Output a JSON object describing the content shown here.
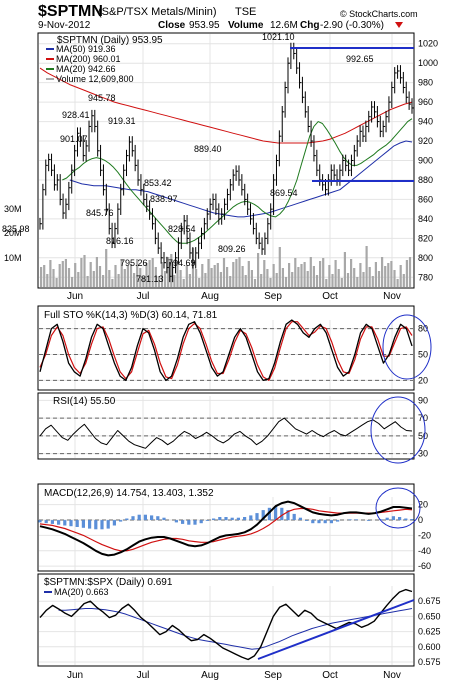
{
  "header": {
    "symbol": "$SPTMN",
    "name": "(S&P/TSX Metals/Minin)",
    "exchange": "TSE",
    "date": "9-Nov-2012",
    "close_label": "Close",
    "close": "953.95",
    "volume_label": "Volume",
    "volume": "12.6M",
    "chg_label": "Chg",
    "chg": "-2.90 (-0.30%)",
    "watermark": "© StockCharts.com"
  },
  "colors": {
    "price": "#000000",
    "ma50": "#1f2fa8",
    "ma200": "#d01010",
    "ma20": "#1f7a1f",
    "volume": "#a8a8a8",
    "annotation": "#1f2fc8",
    "histogram": "#5b8fd8"
  },
  "months": [
    "Jun",
    "Jul",
    "Aug",
    "Sep",
    "Oct",
    "Nov"
  ],
  "chart_data": [
    {
      "type": "line",
      "panel": "price",
      "title": "$SPTMN (Daily) 953.95",
      "legend": [
        {
          "label": "MA(50) 919.36",
          "color": "#1f2fa8"
        },
        {
          "label": "MA(200) 960.01",
          "color": "#d01010"
        },
        {
          "label": "MA(20) 942.66",
          "color": "#1f7a1f"
        },
        {
          "label": "Volume 12,609,800",
          "color": "#a8a8a8"
        }
      ],
      "ylim": [
        770,
        1030
      ],
      "yticks": [
        780,
        800,
        820,
        840,
        860,
        880,
        900,
        920,
        940,
        960,
        980,
        1000,
        1020
      ],
      "volume_labels": [
        "30M",
        "20M",
        "10M"
      ],
      "price_labels": [
        "825.98",
        "901.07",
        "928.41",
        "945.78",
        "845.76",
        "919.31",
        "816.16",
        "853.42",
        "795.26",
        "781.13",
        "794.69",
        "838.97",
        "828.54",
        "889.40",
        "809.26",
        "1021.10",
        "869.54",
        "992.65"
      ],
      "close": [
        835,
        870,
        895,
        901,
        890,
        875,
        880,
        860,
        846,
        855,
        872,
        890,
        910,
        928,
        920,
        905,
        915,
        935,
        946,
        935,
        910,
        890,
        870,
        850,
        830,
        816,
        830,
        850,
        870,
        890,
        905,
        919,
        910,
        895,
        880,
        870,
        860,
        853,
        845,
        835,
        820,
        810,
        800,
        795,
        790,
        781,
        790,
        800,
        815,
        830,
        838,
        820,
        805,
        795,
        805,
        815,
        825,
        835,
        845,
        855,
        860,
        850,
        840,
        845,
        855,
        865,
        875,
        885,
        889,
        880,
        870,
        860,
        850,
        840,
        830,
        820,
        815,
        809,
        820,
        835,
        850,
        880,
        900,
        925,
        950,
        975,
        1000,
        1015,
        1010,
        995,
        980,
        965,
        950,
        935,
        920,
        905,
        890,
        880,
        875,
        870,
        880,
        890,
        885,
        880,
        890,
        900,
        895,
        890,
        900,
        910,
        920,
        930,
        925,
        935,
        945,
        955,
        950,
        940,
        930,
        935,
        945,
        960,
        975,
        990,
        992,
        985,
        975,
        965,
        958,
        954
      ],
      "ma50": [
        880,
        878,
        876,
        875,
        874,
        874,
        874,
        873,
        872,
        871,
        870,
        870,
        869,
        868,
        866,
        864,
        862,
        860,
        858,
        856,
        854,
        852,
        850,
        848,
        846,
        845,
        844,
        843,
        842,
        842,
        843,
        844,
        845,
        846,
        848,
        850,
        852,
        854,
        856,
        858,
        860,
        862,
        864,
        866,
        868,
        870,
        875,
        880,
        885,
        890,
        895,
        900,
        905,
        910,
        915,
        918,
        920,
        919
      ],
      "ma200": [
        995,
        990,
        986,
        982,
        978,
        975,
        972,
        969,
        966,
        963,
        960,
        958,
        956,
        954,
        952,
        950,
        948,
        946,
        944,
        942,
        940,
        938,
        936,
        934,
        932,
        930,
        928,
        926,
        924,
        922,
        920,
        919,
        918,
        918,
        918,
        918,
        918,
        919,
        920,
        922,
        925,
        928,
        932,
        936,
        940,
        944,
        948,
        952,
        955,
        958,
        960
      ],
      "ma20": [
        880,
        882,
        886,
        890,
        893,
        897,
        900,
        902,
        903,
        902,
        900,
        897,
        893,
        888,
        882,
        876,
        870,
        865,
        860,
        855,
        850,
        845,
        840,
        835,
        830,
        825,
        820,
        816,
        815,
        815,
        816,
        818,
        821,
        824,
        828,
        832,
        836,
        840,
        844,
        848,
        852,
        855,
        857,
        858,
        857,
        855,
        852,
        848,
        845,
        843,
        842,
        845,
        850,
        858,
        868,
        880,
        895,
        910,
        925,
        935,
        940,
        938,
        932,
        925,
        918,
        910,
        903,
        898,
        895,
        895,
        897,
        900,
        903,
        906,
        910,
        913,
        916,
        920,
        925,
        930,
        935,
        940,
        943
      ]
    },
    {
      "type": "line",
      "panel": "stochastic",
      "title": "Full STO %K(14,3) %D(3) 60.14, 71.81",
      "ylim": [
        10,
        90
      ],
      "yticks": [
        20,
        50,
        80
      ],
      "pctK": [
        30,
        55,
        80,
        85,
        65,
        40,
        30,
        25,
        45,
        70,
        85,
        80,
        60,
        40,
        25,
        20,
        35,
        60,
        80,
        75,
        55,
        30,
        20,
        25,
        45,
        70,
        85,
        88,
        75,
        55,
        35,
        25,
        30,
        50,
        70,
        80,
        70,
        50,
        30,
        20,
        22,
        40,
        65,
        85,
        90,
        85,
        75,
        70,
        80,
        85,
        75,
        55,
        35,
        25,
        30,
        50,
        75,
        85,
        80,
        60,
        40,
        50,
        70,
        85,
        80,
        60
      ],
      "pctD": [
        35,
        50,
        72,
        82,
        72,
        50,
        35,
        28,
        40,
        62,
        80,
        82,
        68,
        48,
        30,
        22,
        30,
        52,
        74,
        78,
        62,
        40,
        24,
        22,
        38,
        62,
        80,
        86,
        80,
        62,
        42,
        28,
        28,
        44,
        64,
        78,
        74,
        58,
        38,
        24,
        20,
        34,
        58,
        80,
        88,
        88,
        80,
        72,
        76,
        83,
        80,
        64,
        44,
        30,
        28,
        44,
        68,
        82,
        82,
        68,
        48,
        48,
        64,
        80,
        82,
        72
      ]
    },
    {
      "type": "line",
      "panel": "rsi",
      "title": "RSI(14) 55.50",
      "ylim": [
        25,
        95
      ],
      "yticks": [
        30,
        50,
        70,
        90
      ],
      "values": [
        50,
        58,
        62,
        55,
        48,
        45,
        52,
        58,
        63,
        55,
        47,
        42,
        40,
        48,
        56,
        50,
        44,
        40,
        38,
        36,
        42,
        48,
        45,
        40,
        44,
        50,
        55,
        52,
        47,
        50,
        54,
        50,
        45,
        42,
        46,
        52,
        55,
        50,
        46,
        40,
        44,
        50,
        58,
        66,
        70,
        64,
        58,
        55,
        52,
        56,
        52,
        49,
        53,
        56,
        52,
        50,
        54,
        58,
        62,
        66,
        68,
        64,
        58,
        62,
        66,
        60,
        56,
        55.5
      ]
    },
    {
      "type": "bar",
      "panel": "macd",
      "title": "MACD(12,26,9) 14.754, 13.403, 1.352",
      "ylim": [
        -65,
        30
      ],
      "yticks": [
        -60,
        -40,
        -20,
        0,
        20
      ],
      "macd": [
        -8,
        -10,
        -12,
        -15,
        -18,
        -22,
        -26,
        -30,
        -35,
        -40,
        -44,
        -46,
        -45,
        -42,
        -38,
        -33,
        -28,
        -25,
        -23,
        -22,
        -22,
        -24,
        -27,
        -30,
        -33,
        -34,
        -33,
        -30,
        -26,
        -22,
        -20,
        -19,
        -18,
        -16,
        -12,
        -6,
        2,
        10,
        18,
        22,
        24,
        22,
        18,
        14,
        10,
        8,
        7,
        6,
        7,
        9,
        10,
        10,
        9,
        8,
        9,
        11,
        14,
        17,
        17,
        16,
        15
      ],
      "signal": [
        -5,
        -6,
        -7,
        -9,
        -11,
        -14,
        -17,
        -20,
        -24,
        -28,
        -32,
        -35,
        -38,
        -40,
        -40,
        -38,
        -35,
        -32,
        -29,
        -27,
        -25,
        -24,
        -24,
        -25,
        -27,
        -28,
        -29,
        -29,
        -28,
        -26,
        -24,
        -22,
        -21,
        -20,
        -18,
        -15,
        -11,
        -6,
        0,
        6,
        11,
        14,
        15,
        15,
        14,
        12,
        11,
        10,
        9,
        9,
        9,
        9,
        9,
        9,
        9,
        10,
        11,
        12,
        13,
        14,
        13.4
      ],
      "histogram": [
        -3,
        -4,
        -5,
        -6,
        -7,
        -8,
        -9,
        -10,
        -11,
        -12,
        -12,
        -11,
        -7,
        -2,
        2,
        5,
        7,
        7,
        6,
        5,
        3,
        0,
        -3,
        -5,
        -6,
        -6,
        -4,
        -1,
        2,
        4,
        4,
        3,
        3,
        4,
        6,
        9,
        13,
        16,
        18,
        16,
        13,
        8,
        3,
        -1,
        -4,
        -4,
        -4,
        -4,
        -2,
        0,
        1,
        1,
        0,
        -1,
        0,
        1,
        3,
        5,
        4,
        2,
        1.4
      ]
    },
    {
      "type": "line",
      "panel": "ratio",
      "title": "$SPTMN:$SPX (Daily) 0.691",
      "legend": [
        {
          "label": "MA(20) 0.663",
          "color": "#1f2fa8"
        }
      ],
      "ylim": [
        0.57,
        0.7
      ],
      "yticks": [
        0.575,
        0.6,
        0.625,
        0.65,
        0.675
      ],
      "values": [
        0.648,
        0.66,
        0.668,
        0.662,
        0.655,
        0.65,
        0.66,
        0.671,
        0.675,
        0.665,
        0.657,
        0.648,
        0.652,
        0.663,
        0.67,
        0.66,
        0.648,
        0.64,
        0.63,
        0.62,
        0.625,
        0.635,
        0.628,
        0.618,
        0.61,
        0.612,
        0.62,
        0.614,
        0.606,
        0.598,
        0.593,
        0.588,
        0.583,
        0.579,
        0.585,
        0.6,
        0.625,
        0.65,
        0.665,
        0.67,
        0.66,
        0.65,
        0.66,
        0.655,
        0.645,
        0.64,
        0.635,
        0.63,
        0.635,
        0.64,
        0.638,
        0.632,
        0.636,
        0.642,
        0.655,
        0.668,
        0.68,
        0.69,
        0.694,
        0.691
      ],
      "ma": [
        0.66,
        0.66,
        0.661,
        0.662,
        0.663,
        0.663,
        0.662,
        0.661,
        0.659,
        0.657,
        0.654,
        0.65,
        0.646,
        0.642,
        0.638,
        0.634,
        0.63,
        0.626,
        0.622,
        0.618,
        0.615,
        0.612,
        0.61,
        0.608,
        0.606,
        0.604,
        0.602,
        0.6,
        0.598,
        0.596,
        0.597,
        0.6,
        0.604,
        0.608,
        0.613,
        0.618,
        0.622,
        0.626,
        0.63,
        0.633,
        0.636,
        0.639,
        0.641,
        0.643,
        0.645,
        0.647,
        0.649,
        0.651,
        0.653,
        0.655,
        0.657,
        0.659,
        0.661,
        0.663
      ]
    }
  ]
}
